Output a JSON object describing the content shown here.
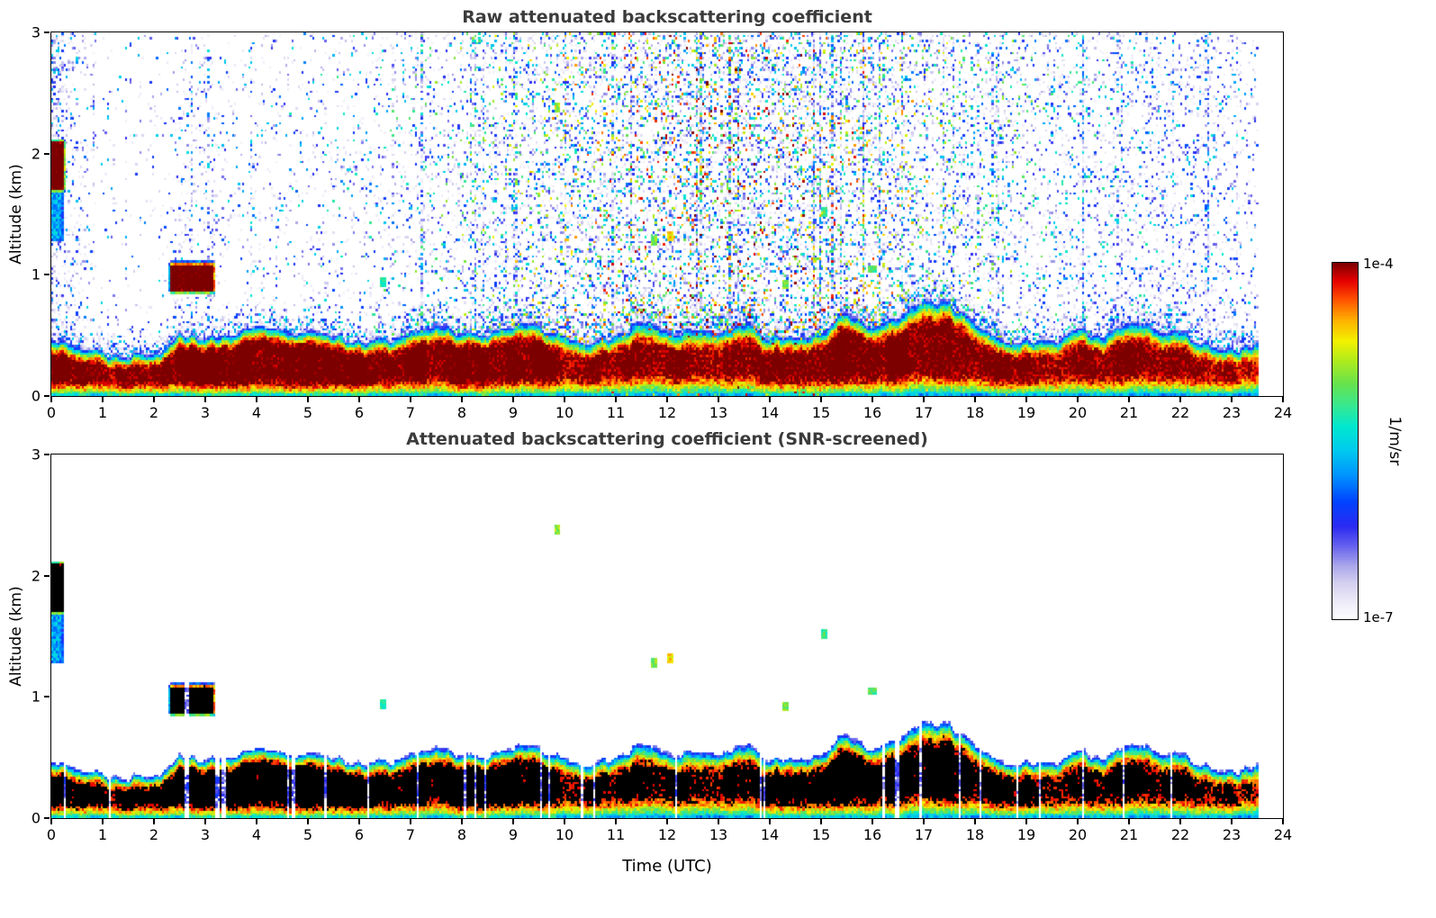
{
  "chart_data": [
    {
      "type": "heatmap",
      "title": "Raw attenuated backscattering coefficient",
      "xlabel": "",
      "ylabel": "Altitude (km)",
      "xlim": [
        0,
        24
      ],
      "ylim": [
        0,
        3
      ],
      "xticks": [
        0,
        1,
        2,
        3,
        4,
        5,
        6,
        7,
        8,
        9,
        10,
        11,
        12,
        13,
        14,
        15,
        16,
        17,
        18,
        19,
        20,
        21,
        22,
        23,
        24
      ],
      "yticks": [
        0,
        1,
        2,
        3
      ],
      "grid": false,
      "noise_screened": false
    },
    {
      "type": "heatmap",
      "title": "Attenuated backscattering coefficient (SNR-screened)",
      "xlabel": "Time (UTC)",
      "ylabel": "Altitude (km)",
      "xlim": [
        0,
        24
      ],
      "ylim": [
        0,
        3
      ],
      "xticks": [
        0,
        1,
        2,
        3,
        4,
        5,
        6,
        7,
        8,
        9,
        10,
        11,
        12,
        13,
        14,
        15,
        16,
        17,
        18,
        19,
        20,
        21,
        22,
        23,
        24
      ],
      "yticks": [
        0,
        1,
        2,
        3
      ],
      "grid": false,
      "noise_screened": true
    }
  ],
  "colorbar": {
    "label": "1/m/sr",
    "top_label": "1e-4",
    "bottom_label": "1e-7",
    "log_min": -7,
    "log_max": -4
  },
  "colormap": [
    [
      0.0,
      "#ffffff"
    ],
    [
      0.05,
      "#eceaf8"
    ],
    [
      0.1,
      "#d4d0f0"
    ],
    [
      0.15,
      "#aaa6ea"
    ],
    [
      0.2,
      "#6a66ee"
    ],
    [
      0.26,
      "#2a2af2"
    ],
    [
      0.33,
      "#0044ff"
    ],
    [
      0.4,
      "#0090ff"
    ],
    [
      0.47,
      "#00c8f0"
    ],
    [
      0.54,
      "#00e8d0"
    ],
    [
      0.6,
      "#38e890"
    ],
    [
      0.66,
      "#66e24e"
    ],
    [
      0.72,
      "#a8ea20"
    ],
    [
      0.78,
      "#f2f200"
    ],
    [
      0.84,
      "#ffb000"
    ],
    [
      0.9,
      "#ff4e00"
    ],
    [
      0.95,
      "#e60000"
    ],
    [
      1.0,
      "#7c0000"
    ]
  ],
  "field": {
    "time_step_h": 0.5,
    "data_end_time_h": 23.5,
    "layer_top_km": [
      0.5,
      0.42,
      0.35,
      0.33,
      0.3,
      0.5,
      0.55,
      0.5,
      0.55,
      0.55,
      0.52,
      0.46,
      0.46,
      0.45,
      0.5,
      0.68,
      0.55,
      0.55,
      0.62,
      0.6,
      0.5,
      0.5,
      0.5,
      0.62,
      0.55,
      0.52,
      0.5,
      0.6,
      0.52,
      0.5,
      0.55,
      0.78,
      0.55,
      0.62,
      0.85,
      0.82,
      0.6,
      0.5,
      0.46,
      0.45,
      0.52,
      0.55,
      0.58,
      0.55,
      0.55,
      0.5,
      0.46,
      0.4
    ],
    "layer_peak_log10": [
      -3.8,
      -3.8,
      -3.9,
      -3.9,
      -3.9,
      -3.8,
      -3.8,
      -3.8,
      -3.8,
      -3.8,
      -3.8,
      -3.8,
      -3.8,
      -3.8,
      -3.8,
      -3.8,
      -3.8,
      -3.8,
      -3.8,
      -3.8,
      -3.9,
      -3.9,
      -3.9,
      -3.9,
      -3.9,
      -3.9,
      -3.9,
      -3.9,
      -3.9,
      -3.85,
      -3.8,
      -3.8,
      -3.8,
      -3.8,
      -3.8,
      -3.8,
      -3.85,
      -3.9,
      -3.9,
      -3.9,
      -3.9,
      -3.85,
      -3.85,
      -3.9,
      -3.9,
      -3.95,
      -4.0,
      -4.05
    ],
    "layer_hot": [
      0.5,
      0.4,
      0.3,
      0.3,
      0.3,
      0.6,
      0.6,
      0.7,
      0.8,
      0.8,
      0.8,
      0.7,
      0.6,
      0.5,
      0.5,
      0.6,
      0.7,
      0.7,
      0.7,
      0.6,
      0.4,
      0.35,
      0.35,
      0.4,
      0.35,
      0.35,
      0.4,
      0.45,
      0.4,
      0.5,
      0.6,
      0.7,
      0.6,
      0.6,
      0.7,
      0.75,
      0.5,
      0.4,
      0.4,
      0.4,
      0.4,
      0.45,
      0.45,
      0.4,
      0.35,
      0.3,
      0.25,
      0.2
    ],
    "clouds": [
      {
        "t0": -0.05,
        "t1": 0.22,
        "z0": 1.72,
        "z1": 2.08,
        "log10": -3.8
      },
      {
        "t0": 0.02,
        "t1": 0.2,
        "z0": 1.3,
        "z1": 1.72,
        "log10": -5.7
      },
      {
        "t0": 2.35,
        "t1": 3.15,
        "z0": 0.88,
        "z1": 1.07,
        "log10": -3.8
      }
    ],
    "dots": [
      {
        "t": 9.85,
        "z": 2.38,
        "log10": -4.9
      },
      {
        "t": 11.75,
        "z": 1.28,
        "log10": -5.0
      },
      {
        "t": 12.05,
        "z": 1.32,
        "log10": -4.6
      },
      {
        "t": 15.05,
        "z": 1.52,
        "log10": -5.2
      },
      {
        "t": 6.45,
        "z": 0.95,
        "log10": -5.3
      },
      {
        "t": 14.3,
        "z": 0.92,
        "log10": -5.0
      },
      {
        "t": 16.0,
        "z": 1.05,
        "log10": -5.1
      }
    ]
  },
  "noise": {
    "base_p": 0.025,
    "day": {
      "amp": 0.3,
      "center_h": 13.2,
      "width_h": 6.0
    },
    "early": {
      "amp": 0.25,
      "center_h": 0.1,
      "width_h": 0.45
    },
    "cloud_bump": {
      "amp": 0.1,
      "center_h": 2.8,
      "width_h": 0.45
    },
    "evening": {
      "amp": 0.1,
      "center_h": 21.8,
      "width_h": 2.0
    },
    "halo": {
      "amp": 0.55,
      "width_km": 0.13
    },
    "stripe": {
      "p1": 0.93,
      "mult1": 2.5,
      "p2": 0.988,
      "mult2": 5.0
    },
    "value": {
      "min_log10": -6.9,
      "span_night": 1.4,
      "span_day_extra": 1.6
    }
  },
  "screening": {
    "gap_p": 0.965,
    "gap_region_p": 0.87,
    "gap_drop": 2.6,
    "gap_regions_h": [
      [
        2.3,
        3.4
      ],
      [
        4.6,
        5.5
      ],
      [
        7.8,
        9.9
      ],
      [
        11.0,
        12.2
      ],
      [
        16.2,
        17.9
      ]
    ],
    "min_log10": -6.5,
    "black_log10": -4.15
  }
}
